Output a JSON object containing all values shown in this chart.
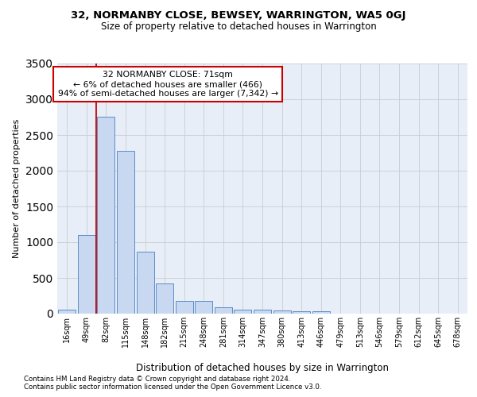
{
  "title1": "32, NORMANBY CLOSE, BEWSEY, WARRINGTON, WA5 0GJ",
  "title2": "Size of property relative to detached houses in Warrington",
  "xlabel": "Distribution of detached houses by size in Warrington",
  "ylabel": "Number of detached properties",
  "categories": [
    "16sqm",
    "49sqm",
    "82sqm",
    "115sqm",
    "148sqm",
    "182sqm",
    "215sqm",
    "248sqm",
    "281sqm",
    "314sqm",
    "347sqm",
    "380sqm",
    "413sqm",
    "446sqm",
    "479sqm",
    "513sqm",
    "546sqm",
    "579sqm",
    "612sqm",
    "645sqm",
    "678sqm"
  ],
  "values": [
    60,
    1100,
    2750,
    2280,
    870,
    420,
    175,
    175,
    90,
    60,
    55,
    50,
    35,
    30,
    5,
    5,
    5,
    0,
    0,
    0,
    0
  ],
  "bar_color": "#c8d8f0",
  "bar_edge_color": "#5b8dc8",
  "grid_color": "#cccccc",
  "bg_color": "#e8eef8",
  "red_line_x": 1.0,
  "annotation_text": "32 NORMANBY CLOSE: 71sqm\n← 6% of detached houses are smaller (466)\n94% of semi-detached houses are larger (7,342) →",
  "annotation_box_color": "#ffffff",
  "annotation_border_color": "#cc0000",
  "ylim": [
    0,
    3500
  ],
  "yticks": [
    0,
    500,
    1000,
    1500,
    2000,
    2500,
    3000,
    3500
  ],
  "footnote1": "Contains HM Land Registry data © Crown copyright and database right 2024.",
  "footnote2": "Contains public sector information licensed under the Open Government Licence v3.0."
}
